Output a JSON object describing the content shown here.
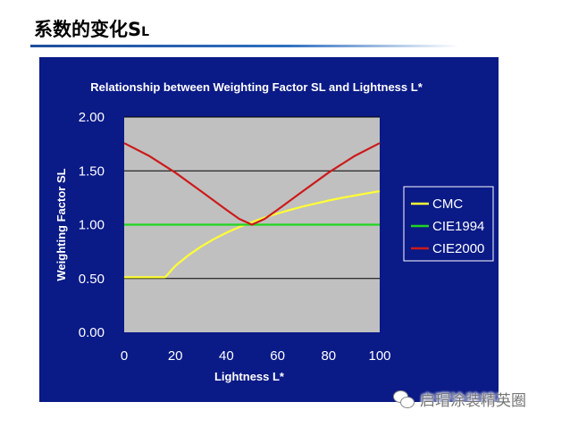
{
  "slide": {
    "title_main": "系数的变化S",
    "title_sub": "L"
  },
  "watermark": {
    "text": "启瑁涂装精英圈",
    "icon": "wechat-icon"
  },
  "colors": {
    "panel_bg": "#0a1a87",
    "plot_bg": "#c0c0c0",
    "cmc": "#ffff33",
    "cie1994": "#1fd51f",
    "cie2000": "#cc1a1a"
  },
  "chart_data": {
    "type": "line",
    "title": "Relationship between Weighting Factor SL and Lightness L*",
    "xlabel": "Lightness L*",
    "ylabel": "Weighting Factor SL",
    "xlim": [
      0,
      100
    ],
    "ylim": [
      0,
      2
    ],
    "xticks": [
      "0",
      "20",
      "40",
      "60",
      "80",
      "100"
    ],
    "yticks": [
      "0.00",
      "0.50",
      "1.00",
      "1.50",
      "2.00"
    ],
    "grid": "horizontal",
    "legend_position": "right",
    "series": [
      {
        "name": "CMC",
        "color": "#ffff33",
        "x": [
          0,
          16,
          20,
          25,
          30,
          35,
          40,
          45,
          50,
          55,
          60,
          65,
          70,
          75,
          80,
          85,
          90,
          95,
          100
        ],
        "y": [
          0.511,
          0.511,
          0.617,
          0.714,
          0.795,
          0.865,
          0.925,
          0.978,
          1.024,
          1.066,
          1.104,
          1.138,
          1.169,
          1.197,
          1.224,
          1.248,
          1.27,
          1.291,
          1.311
        ]
      },
      {
        "name": "CIE1994",
        "color": "#1fd51f",
        "x": [
          0,
          100
        ],
        "y": [
          1.0,
          1.0
        ]
      },
      {
        "name": "CIE2000",
        "color": "#cc1a1a",
        "x": [
          0,
          10,
          20,
          30,
          40,
          45,
          50,
          55,
          60,
          70,
          80,
          90,
          100
        ],
        "y": [
          1.758,
          1.636,
          1.484,
          1.312,
          1.138,
          1.054,
          1.0,
          1.054,
          1.138,
          1.312,
          1.484,
          1.636,
          1.758
        ]
      }
    ]
  }
}
